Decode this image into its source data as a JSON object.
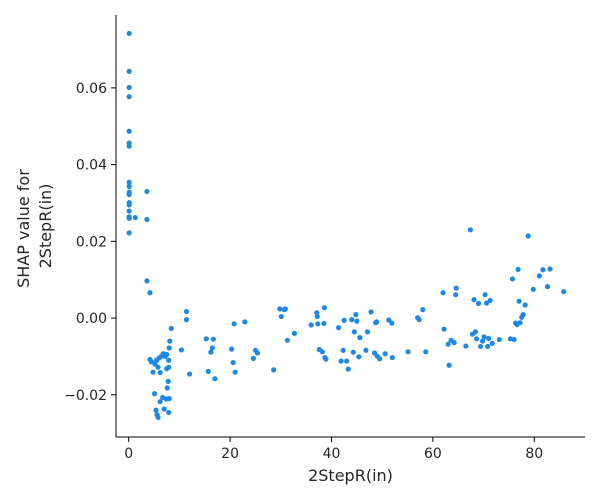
{
  "chart_data": {
    "type": "scatter",
    "title": "",
    "xlabel": "2StepR(in)",
    "ylabel_lines": [
      "SHAP value for",
      "2StepR(in)"
    ],
    "xlim": [
      -2.5,
      90
    ],
    "ylim": [
      -0.031,
      0.079
    ],
    "xticks": [
      0,
      20,
      40,
      60,
      80
    ],
    "xtick_labels": [
      "0",
      "20",
      "40",
      "60",
      "80"
    ],
    "yticks": [
      -0.02,
      0.0,
      0.02,
      0.04,
      0.06
    ],
    "ytick_labels": [
      "−0.02",
      "0.00",
      "0.02",
      "0.04",
      "0.06"
    ],
    "grid": false,
    "point_color": "#1e88e5",
    "points": [
      [
        0.1,
        0.0742
      ],
      [
        0.1,
        0.0643
      ],
      [
        0.1,
        0.0601
      ],
      [
        0.1,
        0.0577
      ],
      [
        0.1,
        0.0487
      ],
      [
        0.1,
        0.0456
      ],
      [
        0.1,
        0.0448
      ],
      [
        0.1,
        0.0354
      ],
      [
        0.1,
        0.0343
      ],
      [
        0.1,
        0.0328
      ],
      [
        0.1,
        0.0322
      ],
      [
        0.1,
        0.0301
      ],
      [
        0.1,
        0.0295
      ],
      [
        0.1,
        0.0279
      ],
      [
        0.1,
        0.0264
      ],
      [
        0.1,
        0.026
      ],
      [
        0.1,
        0.0222
      ],
      [
        1.3,
        0.0262
      ],
      [
        3.6,
        0.033
      ],
      [
        3.6,
        0.0257
      ],
      [
        3.6,
        0.0097
      ],
      [
        4.2,
        0.0066
      ],
      [
        4.2,
        -0.0108
      ],
      [
        4.5,
        -0.0114
      ],
      [
        4.8,
        -0.0141
      ],
      [
        5.2,
        -0.012
      ],
      [
        5.5,
        -0.011
      ],
      [
        5.8,
        -0.0128
      ],
      [
        6.0,
        -0.0104
      ],
      [
        6.4,
        -0.01
      ],
      [
        6.8,
        -0.0093
      ],
      [
        7.2,
        -0.01
      ],
      [
        7.5,
        -0.0132
      ],
      [
        7.9,
        -0.011
      ],
      [
        8.1,
        -0.006
      ],
      [
        8.0,
        -0.0078
      ],
      [
        8.4,
        -0.0027
      ],
      [
        5.1,
        -0.0197
      ],
      [
        5.4,
        -0.024
      ],
      [
        5.6,
        -0.0252
      ],
      [
        5.8,
        -0.0259
      ],
      [
        6.2,
        -0.0218
      ],
      [
        6.7,
        -0.0207
      ],
      [
        7.0,
        -0.0237
      ],
      [
        7.4,
        -0.0211
      ],
      [
        7.9,
        -0.0246
      ],
      [
        8.0,
        -0.021
      ],
      [
        6.2,
        -0.0142
      ],
      [
        7.6,
        -0.0182
      ],
      [
        7.8,
        -0.0165
      ],
      [
        7.5,
        -0.0095
      ],
      [
        7.9,
        -0.0128
      ],
      [
        10.4,
        -0.0083
      ],
      [
        11.4,
        0.0017
      ],
      [
        11.4,
        -0.0004
      ],
      [
        12.0,
        -0.0146
      ],
      [
        15.3,
        -0.0054
      ],
      [
        15.7,
        -0.0139
      ],
      [
        16.2,
        -0.0089
      ],
      [
        16.5,
        -0.0078
      ],
      [
        16.7,
        -0.0055
      ],
      [
        17.0,
        -0.0158
      ],
      [
        20.3,
        -0.0081
      ],
      [
        20.6,
        -0.0116
      ],
      [
        20.8,
        -0.0015
      ],
      [
        21.0,
        -0.0141
      ],
      [
        22.9,
        -0.001
      ],
      [
        24.6,
        -0.0105
      ],
      [
        25.0,
        -0.0084
      ],
      [
        25.4,
        -0.0091
      ],
      [
        28.6,
        -0.0135
      ],
      [
        29.8,
        0.0024
      ],
      [
        30.1,
        0.0004
      ],
      [
        30.7,
        0.0022
      ],
      [
        30.9,
        0.0024
      ],
      [
        31.3,
        -0.0058
      ],
      [
        32.7,
        -0.004
      ],
      [
        36.0,
        -0.0018
      ],
      [
        37.1,
        0.0014
      ],
      [
        37.2,
        0.0004
      ],
      [
        37.3,
        -0.0015
      ],
      [
        37.6,
        -0.0082
      ],
      [
        38.2,
        -0.0088
      ],
      [
        38.5,
        -0.0014
      ],
      [
        38.6,
        0.0027
      ],
      [
        38.7,
        -0.0103
      ],
      [
        38.9,
        -0.0107
      ],
      [
        41.4,
        -0.0025
      ],
      [
        41.9,
        -0.0112
      ],
      [
        42.3,
        -0.0084
      ],
      [
        42.5,
        -0.0006
      ],
      [
        43.0,
        -0.0112
      ],
      [
        43.3,
        -0.0133
      ],
      [
        44.0,
        -0.0004
      ],
      [
        44.3,
        -0.0089
      ],
      [
        44.5,
        -0.0036
      ],
      [
        44.8,
        0.0009
      ],
      [
        45.0,
        -0.0008
      ],
      [
        45.4,
        -0.0101
      ],
      [
        45.6,
        -0.0051
      ],
      [
        46.8,
        -0.0084
      ],
      [
        47.1,
        -0.0036
      ],
      [
        47.8,
        0.0016
      ],
      [
        48.5,
        -0.0091
      ],
      [
        48.7,
        -0.0012
      ],
      [
        48.9,
        -0.001
      ],
      [
        49.0,
        -0.0099
      ],
      [
        49.5,
        -0.0106
      ],
      [
        50.6,
        -0.0093
      ],
      [
        51.3,
        -0.0005
      ],
      [
        51.9,
        -0.0013
      ],
      [
        52.0,
        -0.0103
      ],
      [
        55.1,
        -0.0088
      ],
      [
        57.0,
        0.0001
      ],
      [
        57.3,
        -0.0004
      ],
      [
        58.0,
        0.0022
      ],
      [
        58.6,
        -0.0088
      ],
      [
        62.0,
        0.0066
      ],
      [
        62.2,
        -0.0029
      ],
      [
        63.0,
        -0.0068
      ],
      [
        63.2,
        -0.0123
      ],
      [
        63.6,
        -0.0058
      ],
      [
        64.2,
        -0.0064
      ],
      [
        64.5,
        0.0061
      ],
      [
        64.6,
        0.0078
      ],
      [
        66.5,
        -0.0073
      ],
      [
        67.4,
        0.023
      ],
      [
        67.8,
        -0.0042
      ],
      [
        68.1,
        0.0048
      ],
      [
        68.4,
        -0.0036
      ],
      [
        68.6,
        -0.0054
      ],
      [
        69.0,
        0.0038
      ],
      [
        69.4,
        -0.0074
      ],
      [
        69.8,
        -0.006
      ],
      [
        70.1,
        -0.0049
      ],
      [
        70.3,
        0.0061
      ],
      [
        70.6,
        0.0039
      ],
      [
        70.8,
        -0.0074
      ],
      [
        71.0,
        -0.0053
      ],
      [
        71.3,
        0.0046
      ],
      [
        71.7,
        -0.0066
      ],
      [
        73.1,
        -0.0056
      ],
      [
        75.3,
        -0.0054
      ],
      [
        75.7,
        0.0102
      ],
      [
        76.0,
        -0.0056
      ],
      [
        76.3,
        -0.0013
      ],
      [
        76.6,
        -0.0017
      ],
      [
        76.8,
        0.0127
      ],
      [
        77.0,
        0.0044
      ],
      [
        77.2,
        -0.0012
      ],
      [
        77.5,
        0.0002
      ],
      [
        77.8,
        0.0009
      ],
      [
        78.2,
        0.0034
      ],
      [
        78.8,
        0.0214
      ],
      [
        79.8,
        0.0075
      ],
      [
        81.0,
        0.011
      ],
      [
        81.7,
        0.0126
      ],
      [
        82.6,
        0.0082
      ],
      [
        83.1,
        0.0128
      ],
      [
        85.8,
        0.0069
      ]
    ]
  }
}
